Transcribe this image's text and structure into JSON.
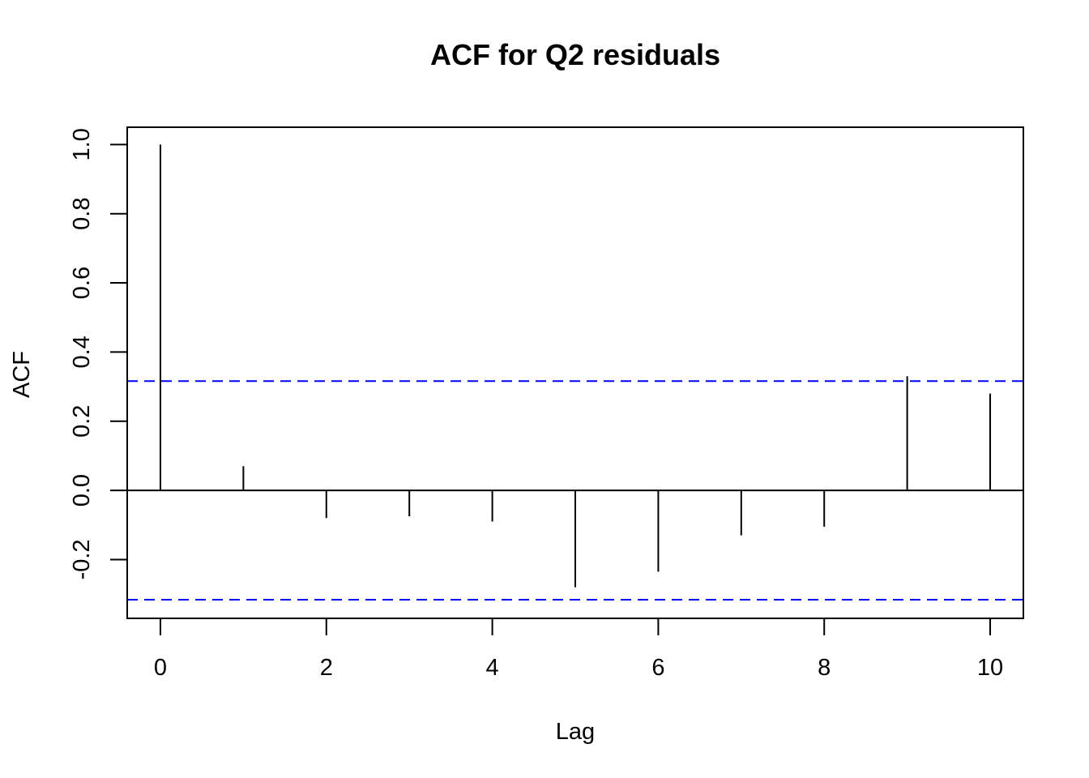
{
  "chart_data": {
    "type": "bar",
    "title": "ACF for Q2 residuals",
    "xlabel": "Lag",
    "ylabel": "ACF",
    "x": [
      0,
      1,
      2,
      3,
      4,
      5,
      6,
      7,
      8,
      9,
      10
    ],
    "values": [
      1.0,
      0.07,
      -0.08,
      -0.075,
      -0.09,
      -0.28,
      -0.235,
      -0.13,
      -0.105,
      0.33,
      0.28
    ],
    "xlim": [
      -0.4,
      10.4
    ],
    "ylim": [
      -0.37,
      1.05
    ],
    "xticks": [
      "0",
      "2",
      "4",
      "6",
      "8",
      "10"
    ],
    "yticks": [
      "-0.2",
      "0.0",
      "0.2",
      "0.4",
      "0.6",
      "0.8",
      "1.0"
    ],
    "confidence_bounds": [
      0.316,
      -0.316
    ],
    "confidence_color": "#0000ff",
    "zero_line": true,
    "grid": false,
    "legend": "none"
  }
}
